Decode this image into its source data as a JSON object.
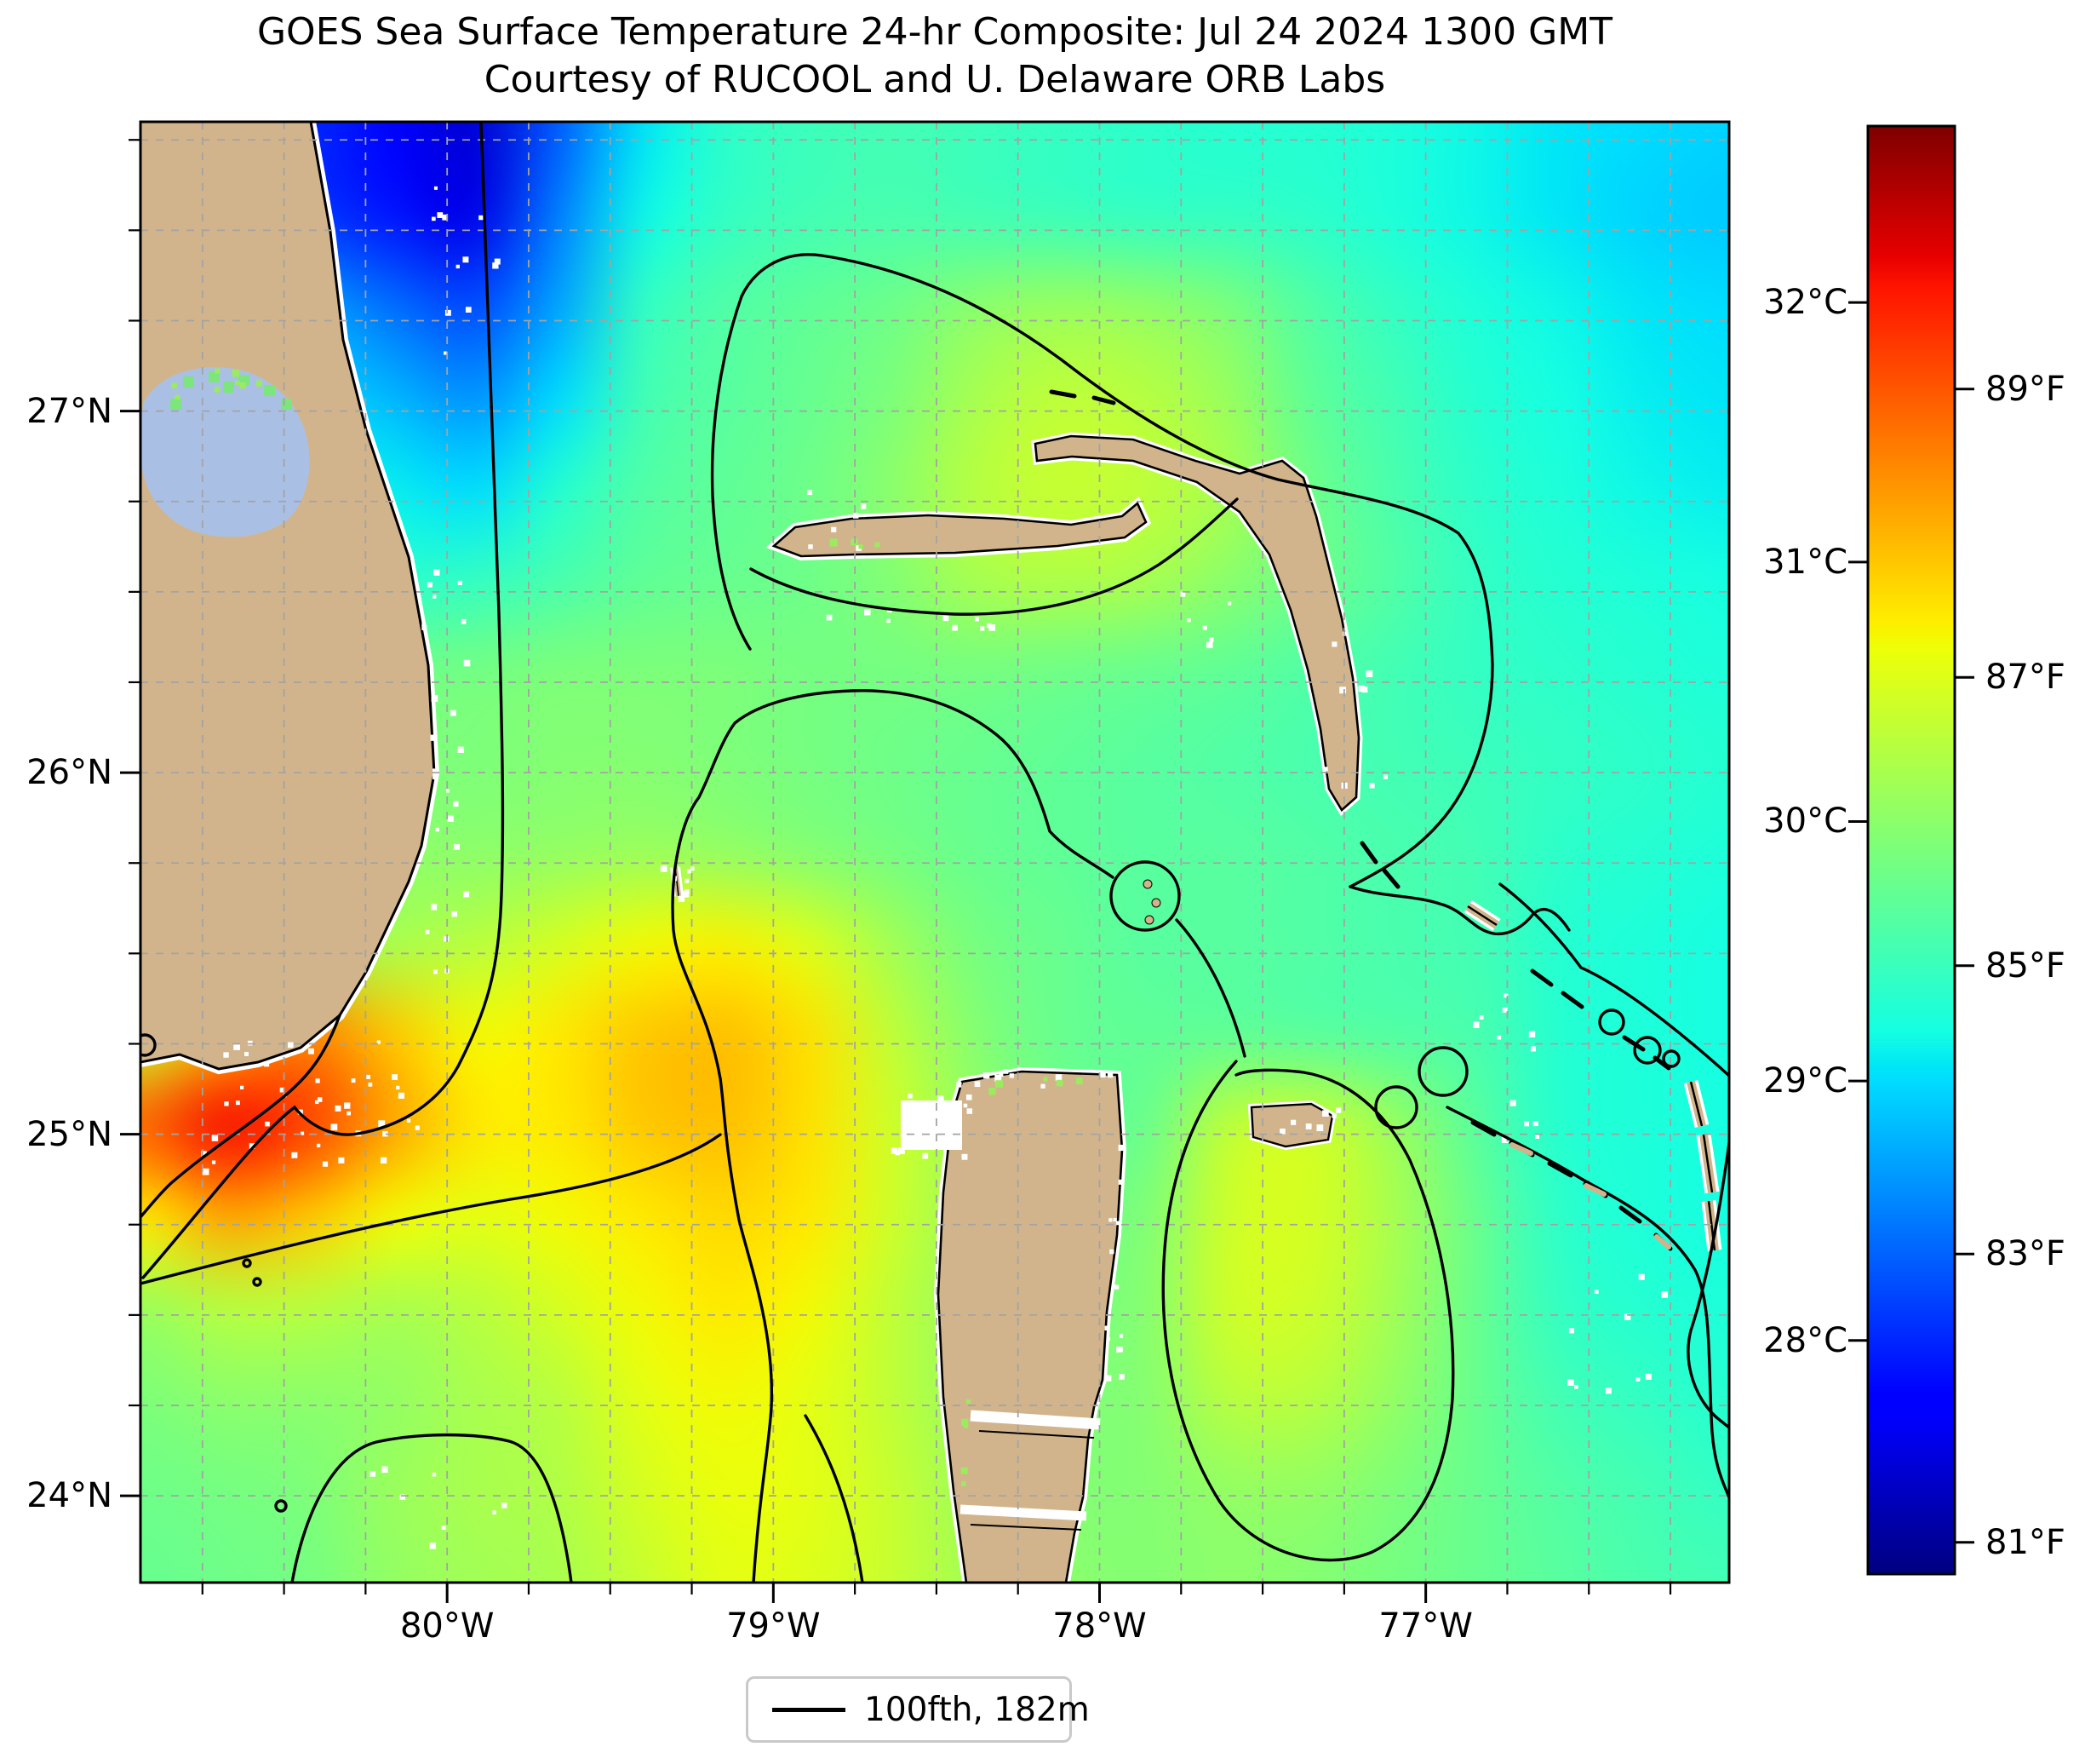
{
  "title": {
    "line1": "GOES Sea Surface Temperature 24-hr Composite: Jul 24 2024 1300 GMT",
    "line2": "Courtesy of RUCOOL and U. Delaware ORB Labs"
  },
  "axes": {
    "x_ticks": [
      {
        "label": "80°W",
        "lon": -80
      },
      {
        "label": "79°W",
        "lon": -79
      },
      {
        "label": "78°W",
        "lon": -78
      },
      {
        "label": "77°W",
        "lon": -77
      }
    ],
    "y_ticks": [
      {
        "label": "27°N",
        "lat": 27
      },
      {
        "label": "26°N",
        "lat": 26
      },
      {
        "label": "25°N",
        "lat": 25
      },
      {
        "label": "24°N",
        "lat": 24
      }
    ],
    "grid_step_deg": 0.25
  },
  "colorbar": {
    "t_top_c": 32.68,
    "t_bottom_c": 27.1,
    "celsius_ticks": [
      {
        "label": "32°C",
        "value": 32
      },
      {
        "label": "31°C",
        "value": 31
      },
      {
        "label": "30°C",
        "value": 30
      },
      {
        "label": "29°C",
        "value": 29
      },
      {
        "label": "28°C",
        "value": 28
      }
    ],
    "fahrenheit_ticks": [
      {
        "label": "89°F",
        "value": 89
      },
      {
        "label": "87°F",
        "value": 87
      },
      {
        "label": "85°F",
        "value": 85
      },
      {
        "label": "83°F",
        "value": 83
      },
      {
        "label": "81°F",
        "value": 81
      }
    ]
  },
  "legend": {
    "items": [
      {
        "label": "100fth, 182m",
        "swatch": "black-line"
      }
    ]
  },
  "colors": {
    "land": "#d2b48c",
    "lake": "#a9c0e4",
    "background": "#ffffff",
    "grid": "#a3a3a3",
    "contour": "#000000",
    "missing_data": "#ffffff"
  },
  "chart_data": {
    "type": "heatmap",
    "variable": "sea_surface_temperature",
    "units": "°C",
    "colormap": "jet",
    "value_range_c": [
      27.1,
      32.68
    ],
    "extent": {
      "lon_min": -80.94,
      "lon_max": -76.07,
      "lat_min": 23.76,
      "lat_max": 27.8
    },
    "contour_overlay": {
      "label": "100fth, 182m",
      "depth_fathoms": 100,
      "depth_m": 182
    },
    "land_features": [
      "Florida peninsula",
      "Lake Okeechobee",
      "Florida Keys",
      "Grand Bahama",
      "Abaco",
      "Little Bahama Bank",
      "Bimini",
      "Berry Islands",
      "Andros",
      "New Providence",
      "Eleuthera",
      "Exuma Cays",
      "Cay Sal Bank"
    ],
    "lon": [
      -80.94,
      -80.68,
      -80.43,
      -80.17,
      -79.92,
      -79.66,
      -79.4,
      -79.15,
      -78.89,
      -78.63,
      -78.38,
      -78.12,
      -77.87,
      -77.61,
      -77.35,
      -77.1,
      -76.84,
      -76.58,
      -76.33,
      -76.07
    ],
    "lat": [
      27.8,
      27.55,
      27.29,
      27.04,
      26.79,
      26.54,
      26.28,
      26.03,
      25.78,
      25.53,
      25.27,
      25.02,
      24.77,
      24.52,
      24.26,
      24.01,
      23.76
    ],
    "values": [
      [
        28.0,
        28.0,
        28.0,
        27.8,
        27.5,
        28.3,
        29.05,
        29.35,
        29.45,
        29.5,
        29.45,
        29.4,
        29.35,
        29.3,
        29.3,
        29.25,
        29.15,
        29.05,
        29.0,
        28.95
      ],
      [
        28.2,
        28.2,
        28.1,
        27.9,
        27.6,
        28.5,
        29.15,
        29.4,
        29.5,
        29.55,
        29.5,
        29.45,
        29.4,
        29.4,
        29.35,
        29.25,
        29.15,
        29.05,
        28.95,
        28.9
      ],
      [
        28.8,
        28.8,
        28.7,
        28.4,
        28.2,
        28.7,
        29.4,
        29.6,
        29.7,
        29.8,
        30.0,
        30.1,
        30.05,
        29.9,
        29.6,
        29.4,
        29.25,
        29.15,
        29.05,
        29.0
      ],
      [
        29.1,
        29.1,
        29.0,
        28.8,
        28.6,
        29.0,
        29.5,
        29.65,
        29.75,
        29.9,
        30.2,
        30.35,
        30.3,
        30.1,
        29.7,
        29.5,
        29.3,
        29.2,
        29.1,
        29.05
      ],
      [
        29.3,
        29.3,
        29.25,
        29.1,
        29.0,
        29.3,
        29.6,
        29.7,
        29.8,
        30.0,
        30.3,
        30.4,
        30.35,
        30.2,
        29.8,
        29.55,
        29.35,
        29.25,
        29.15,
        29.1
      ],
      [
        29.5,
        29.5,
        29.45,
        29.35,
        29.4,
        29.55,
        29.7,
        29.75,
        29.8,
        29.95,
        30.2,
        30.25,
        30.2,
        30.0,
        29.8,
        29.6,
        29.4,
        29.3,
        29.25,
        29.2
      ],
      [
        29.6,
        29.65,
        29.7,
        29.8,
        29.85,
        29.9,
        29.9,
        29.9,
        29.85,
        29.85,
        29.85,
        29.8,
        29.75,
        29.7,
        29.6,
        29.5,
        29.4,
        29.35,
        29.3,
        29.25
      ],
      [
        29.7,
        29.75,
        29.8,
        29.9,
        29.9,
        29.95,
        29.95,
        29.9,
        29.85,
        29.8,
        29.75,
        29.7,
        29.65,
        29.6,
        29.55,
        29.5,
        29.45,
        29.4,
        29.35,
        29.3
      ],
      [
        29.8,
        29.85,
        29.9,
        30.0,
        30.0,
        30.05,
        30.1,
        30.05,
        29.95,
        29.85,
        29.75,
        29.7,
        29.65,
        29.65,
        29.6,
        29.55,
        29.5,
        29.35,
        29.3,
        29.25
      ],
      [
        29.9,
        30.0,
        30.1,
        30.2,
        30.3,
        30.5,
        30.7,
        30.75,
        30.55,
        30.15,
        29.85,
        29.75,
        29.65,
        29.65,
        29.6,
        29.55,
        29.5,
        29.3,
        29.25,
        29.2
      ],
      [
        30.4,
        31.1,
        31.4,
        31.0,
        30.7,
        30.8,
        31.0,
        31.05,
        30.85,
        30.35,
        29.95,
        29.75,
        29.7,
        29.7,
        29.65,
        29.6,
        29.55,
        29.3,
        29.25,
        29.2
      ],
      [
        31.6,
        32.1,
        31.8,
        31.2,
        30.8,
        30.8,
        31.0,
        31.05,
        30.85,
        30.45,
        30.05,
        29.8,
        29.75,
        30.35,
        30.45,
        30.1,
        29.65,
        29.3,
        29.25,
        29.2
      ],
      [
        30.8,
        31.2,
        31.0,
        30.7,
        30.6,
        30.7,
        30.8,
        30.9,
        30.8,
        30.45,
        30.05,
        29.85,
        29.9,
        30.45,
        30.5,
        30.2,
        29.75,
        29.35,
        29.25,
        29.2
      ],
      [
        30.1,
        30.3,
        30.3,
        30.2,
        30.3,
        30.5,
        30.7,
        30.8,
        30.7,
        30.35,
        30.05,
        29.9,
        29.95,
        30.45,
        30.45,
        30.15,
        29.75,
        29.4,
        29.3,
        29.25
      ],
      [
        29.9,
        30.0,
        30.0,
        30.05,
        30.2,
        30.3,
        30.6,
        30.7,
        30.6,
        30.35,
        30.05,
        29.95,
        29.95,
        30.3,
        30.3,
        30.05,
        29.75,
        29.5,
        29.4,
        29.3
      ],
      [
        29.8,
        29.85,
        29.9,
        30.1,
        30.2,
        30.25,
        30.5,
        30.65,
        30.6,
        30.4,
        30.1,
        29.95,
        29.95,
        30.05,
        30.05,
        29.9,
        29.75,
        29.6,
        29.5,
        29.4
      ],
      [
        29.75,
        29.8,
        29.85,
        30.05,
        30.15,
        30.2,
        30.4,
        30.6,
        30.55,
        30.4,
        30.15,
        30.0,
        29.95,
        30.0,
        29.95,
        29.85,
        29.75,
        29.65,
        29.55,
        29.5
      ]
    ]
  }
}
